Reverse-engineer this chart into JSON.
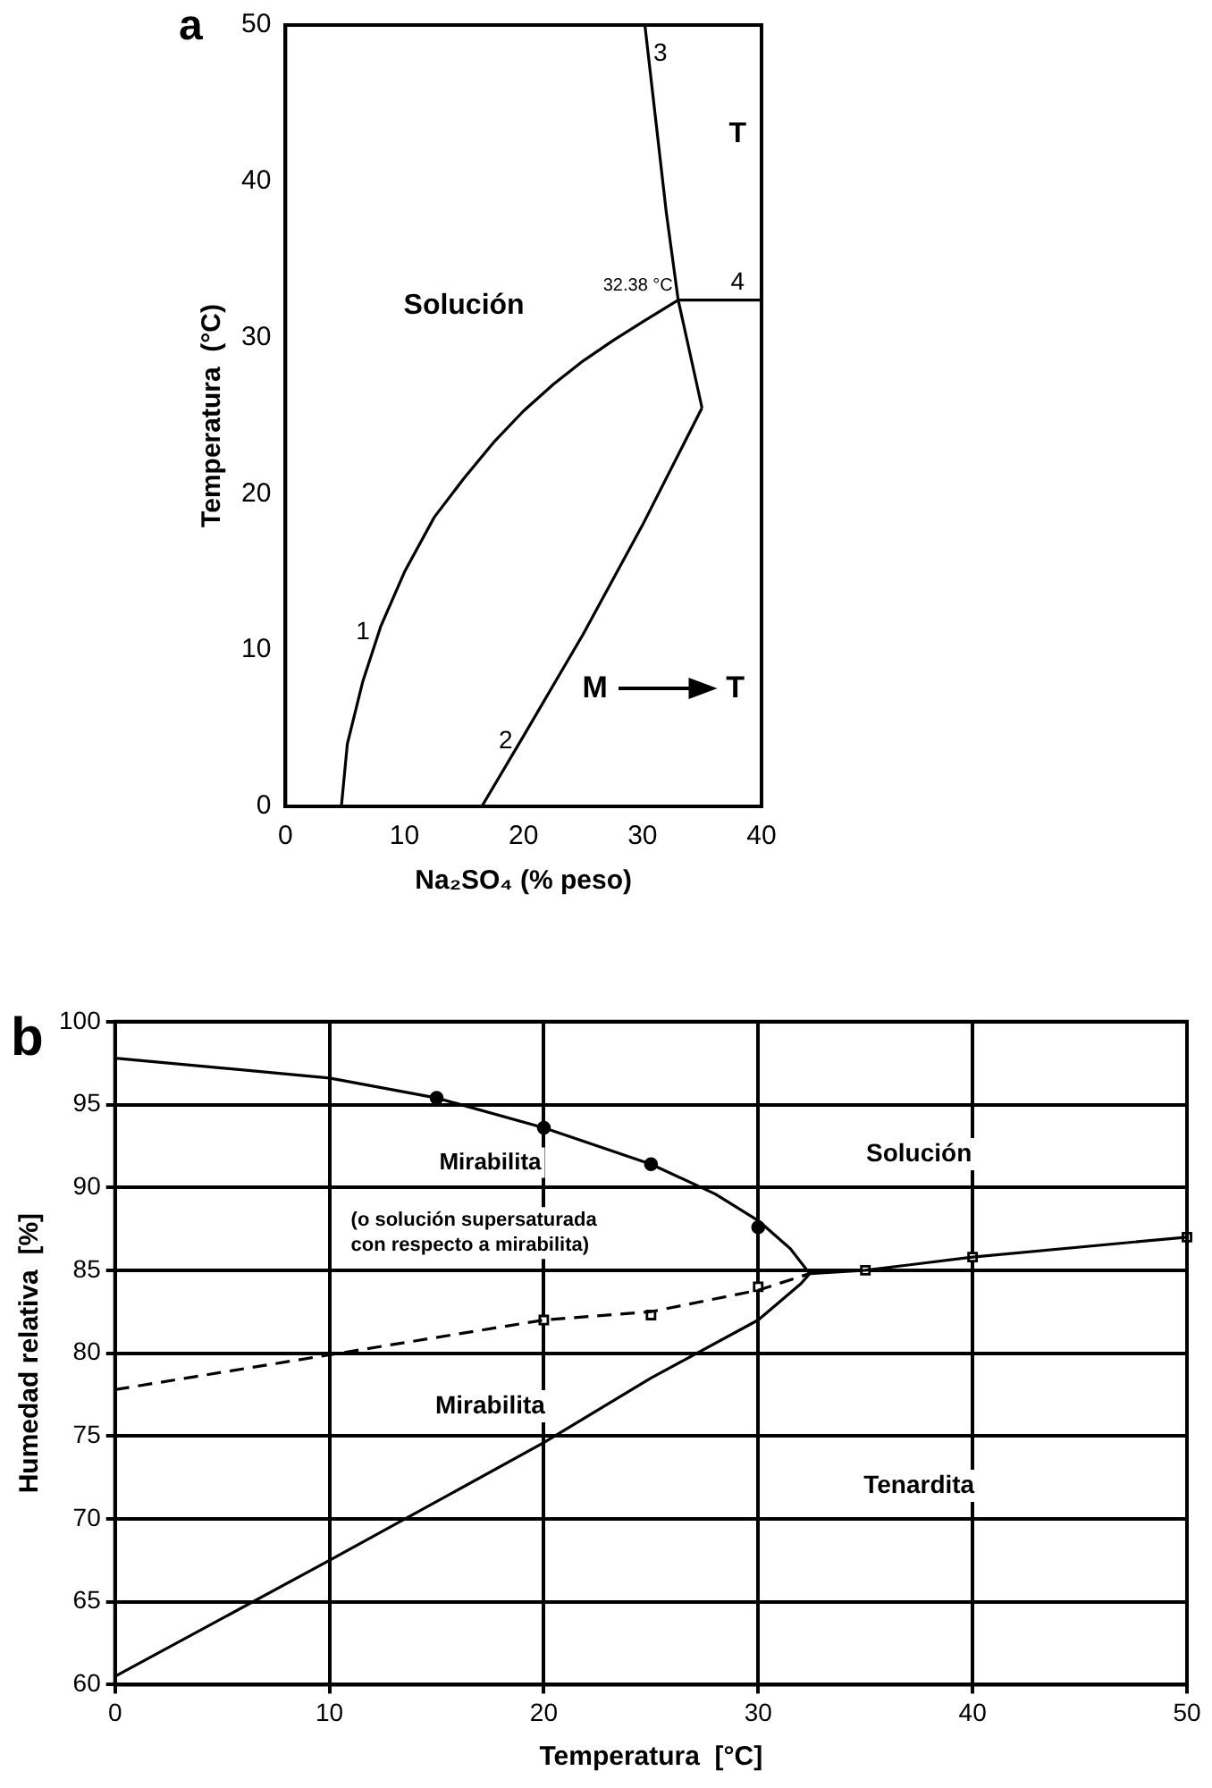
{
  "chart_data": [
    {
      "type": "line",
      "title": "a",
      "xlabel": "Na₂SO₄ (% peso)",
      "ylabel": "Temperatura  (°C)",
      "xlim": [
        0,
        40
      ],
      "ylim": [
        0,
        50
      ],
      "xticks": [
        0,
        10,
        20,
        30,
        40
      ],
      "yticks": [
        0,
        10,
        20,
        30,
        40,
        50
      ],
      "grid": false,
      "legend": false,
      "marker": "none",
      "series": [
        {
          "color": "#000000",
          "x": [
            4.7,
            5.2,
            6.5,
            8,
            10,
            12.5,
            15,
            17.5,
            20,
            22.5,
            25,
            27.5,
            30,
            33
          ],
          "values": [
            0,
            4,
            8,
            11.5,
            15,
            18.5,
            21,
            23.3,
            25.3,
            27,
            28.5,
            29.8,
            31,
            32.4
          ]
        },
        {
          "color": "#000000",
          "x": [
            16.5,
            20,
            25,
            30,
            35
          ],
          "values": [
            0,
            4.5,
            11,
            18,
            25.5
          ]
        },
        {
          "color": "#000000",
          "x": [
            35,
            33,
            32,
            30.2
          ],
          "values": [
            25.5,
            32.4,
            38,
            50
          ]
        },
        {
          "color": "#000000",
          "x": [
            33,
            40
          ],
          "values": [
            32.4,
            32.4
          ]
        }
      ],
      "annotations": [
        "Solución",
        "T",
        "M",
        "T",
        {
          "text": "32.38 °C",
          "x": 33,
          "y": 32.38
        },
        {
          "text": "1",
          "x": 6.5,
          "y": 10
        },
        {
          "text": "2",
          "x": 18.5,
          "y": 3
        },
        {
          "text": "3",
          "x": 31.5,
          "y": 47
        },
        {
          "text": "4",
          "x": 38,
          "y": 32.38
        }
      ]
    },
    {
      "type": "line",
      "title": "b",
      "xlabel": "Temperatura  [°C]",
      "ylabel": "Humedad relativa  [%]",
      "xlim": [
        0,
        50
      ],
      "ylim": [
        60,
        100
      ],
      "xticks": [
        0,
        10,
        20,
        30,
        40,
        50
      ],
      "yticks": [
        60,
        65,
        70,
        75,
        80,
        85,
        90,
        95,
        100
      ],
      "grid": true,
      "legend": false,
      "series": [
        {
          "color": "#000000",
          "marker": "none",
          "x": [
            0,
            10,
            15,
            20,
            25,
            28,
            30,
            31.5,
            32.4,
            32,
            30,
            25,
            20,
            10,
            0
          ],
          "values": [
            97.8,
            96.6,
            95.4,
            93.6,
            91.4,
            89.6,
            88,
            86.3,
            84.8,
            84.2,
            82,
            78.5,
            74.6,
            67.5,
            60.5
          ]
        },
        {
          "color": "#000000",
          "type": "scatter",
          "marker": "circle",
          "x": [
            15,
            20,
            25,
            30
          ],
          "values": [
            95.4,
            93.6,
            91.4,
            87.6
          ]
        },
        {
          "color": "#000000",
          "marker": "none",
          "line_style": "dashed",
          "x": [
            0,
            10,
            20,
            25,
            30,
            32.4
          ],
          "values": [
            77.8,
            79.9,
            82,
            82.5,
            83.8,
            84.8
          ]
        },
        {
          "color": "#000000",
          "marker": "none",
          "x": [
            32.4,
            35,
            40,
            50
          ],
          "values": [
            84.8,
            85,
            85.8,
            87
          ]
        },
        {
          "color": "#000000",
          "type": "scatter",
          "marker": "square",
          "x": [
            20,
            25,
            30,
            35,
            40,
            50
          ],
          "values": [
            82,
            82.3,
            84,
            85,
            85.8,
            87
          ]
        }
      ],
      "annotations": [
        "Mirabilita",
        "(o solución supersaturada\ncon respecto a mirabilita)",
        "Solución",
        "Mirabilita",
        "Tenardita"
      ]
    }
  ]
}
